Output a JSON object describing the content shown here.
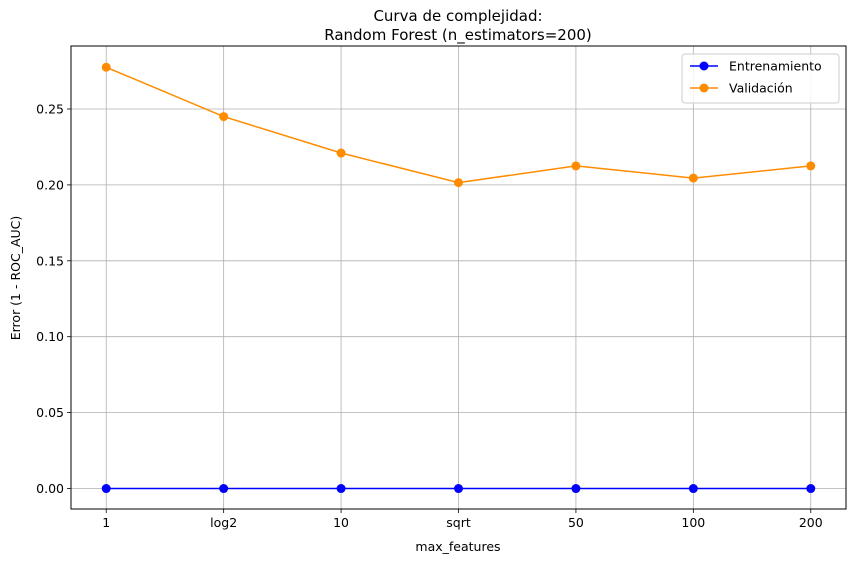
{
  "chart_data": {
    "type": "line",
    "title_line1": "Curva de complejidad:",
    "title_line2": "Random Forest (n_estimators=200)",
    "xlabel": "max_features",
    "ylabel": "Error (1 - ROC_AUC)",
    "categories": [
      "1",
      "log2",
      "10",
      "sqrt",
      "50",
      "100",
      "200"
    ],
    "ylim": [
      -0.0135,
      0.2915
    ],
    "yticks": [
      0.0,
      0.05,
      0.1,
      0.15,
      0.2,
      0.25
    ],
    "ytick_labels": [
      "0.00",
      "0.05",
      "0.10",
      "0.15",
      "0.20",
      "0.25"
    ],
    "grid": true,
    "legend_position": "top-right",
    "series": [
      {
        "name": "Entrenamiento",
        "color": "#0000ff",
        "values": [
          0.0,
          0.0,
          0.0,
          0.0,
          0.0,
          0.0,
          0.0
        ]
      },
      {
        "name": "Validación",
        "color": "#ff8c00",
        "values": [
          0.2775,
          0.245,
          0.221,
          0.2015,
          0.2125,
          0.2045,
          0.2125
        ]
      }
    ]
  }
}
